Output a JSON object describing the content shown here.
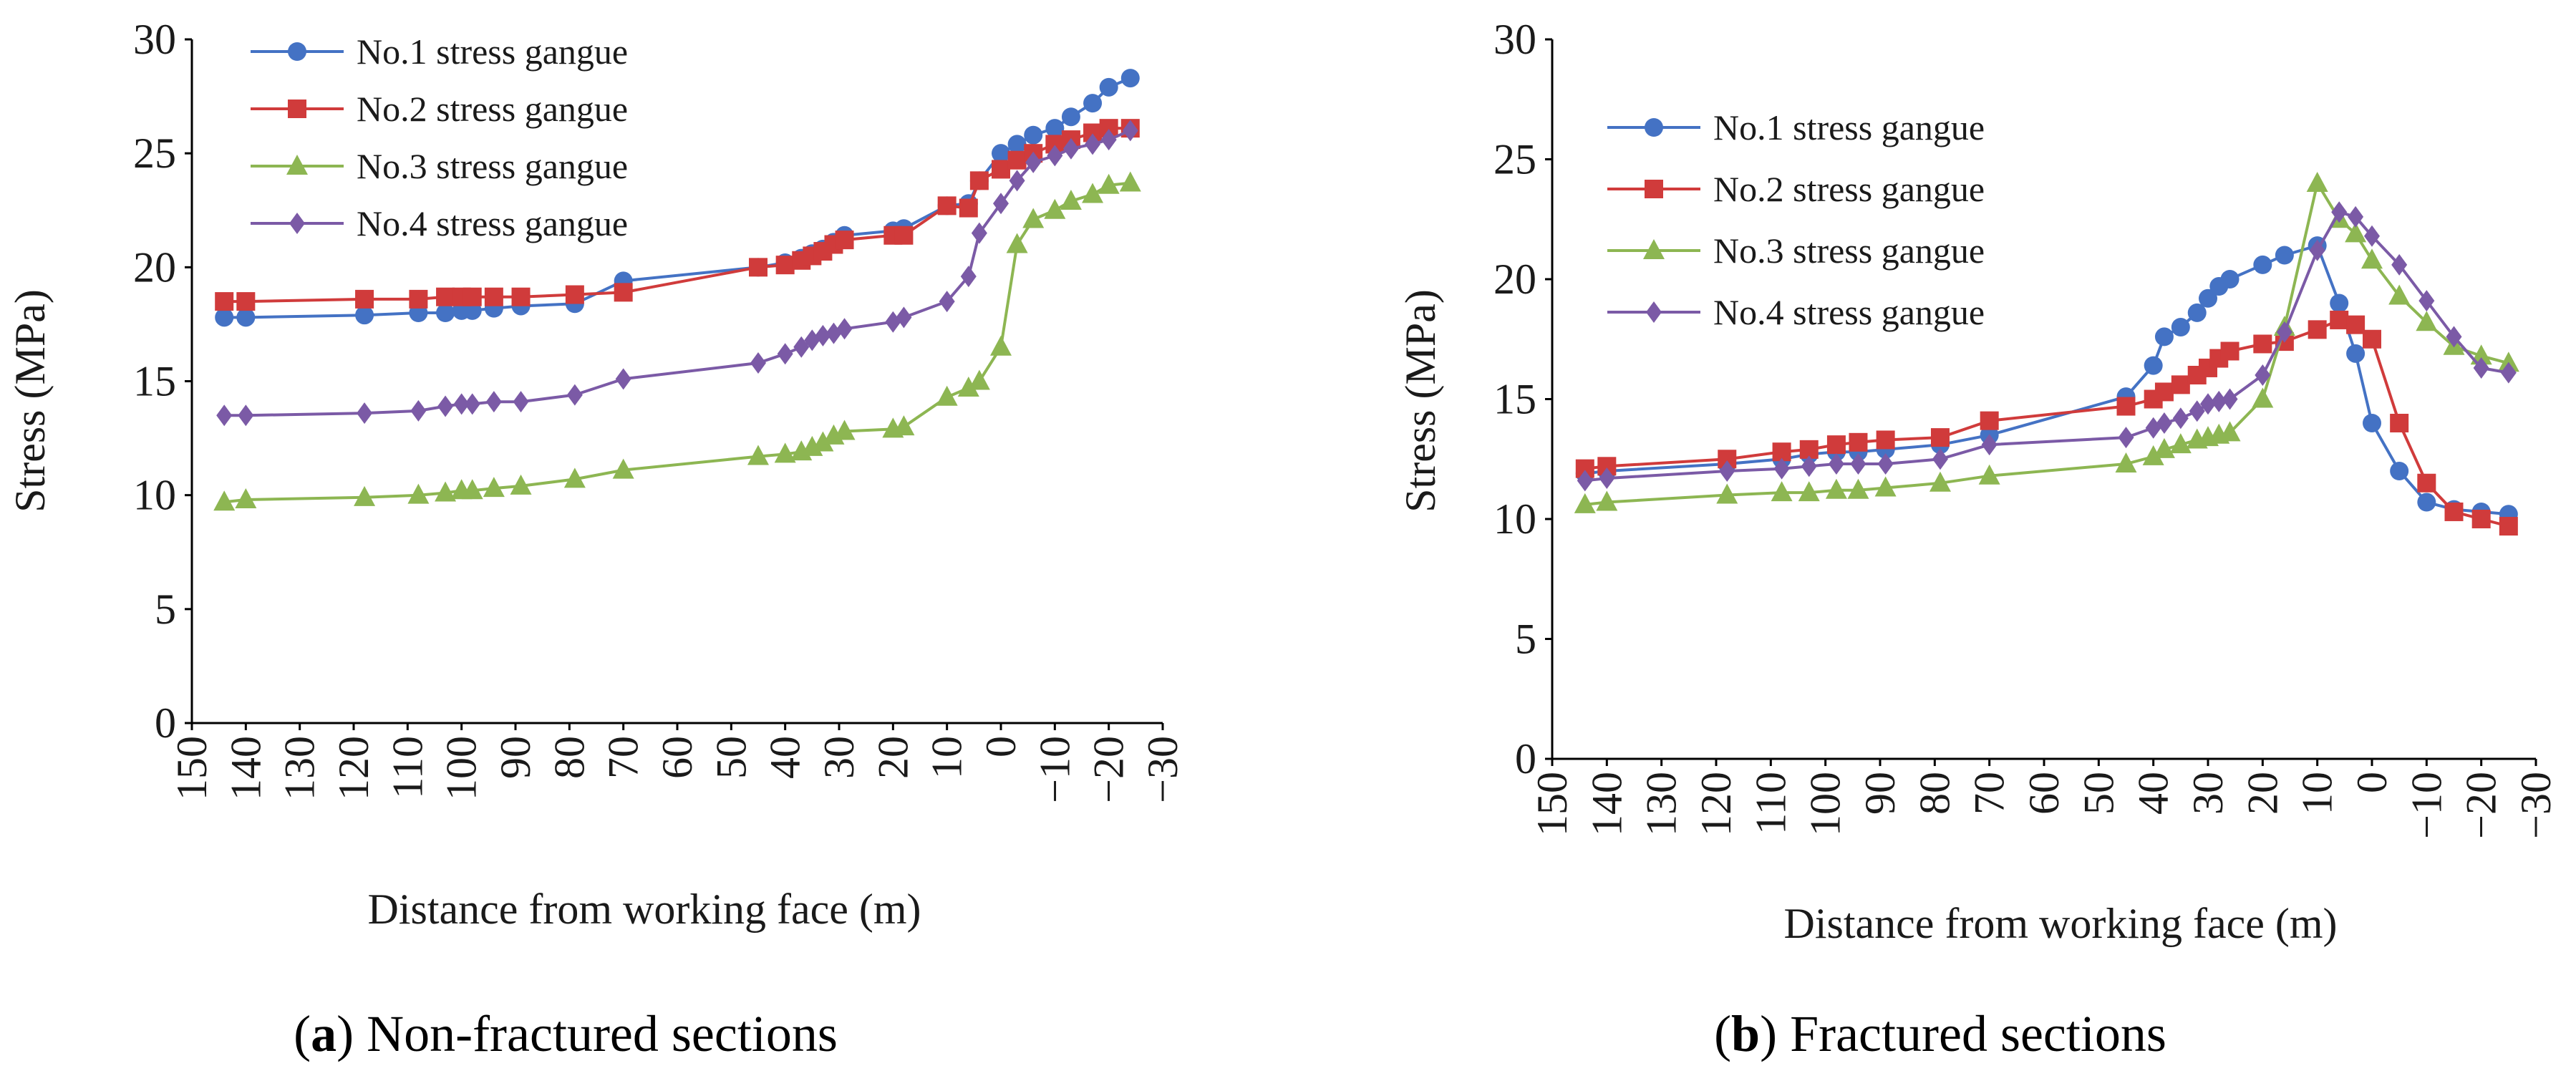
{
  "chart_data": [
    {
      "type": "line",
      "panel_letter": "a",
      "title": "Non-fractured sections",
      "xlabel": "Distance from working face (m)",
      "ylabel": "Stress (MPa)",
      "xlim": [
        150,
        -30
      ],
      "ylim": [
        0,
        30
      ],
      "x_ticks": [
        150,
        140,
        130,
        120,
        110,
        100,
        90,
        80,
        70,
        60,
        50,
        40,
        30,
        20,
        10,
        0,
        -10,
        -20,
        -30
      ],
      "x_tick_labels": [
        "150",
        "140",
        "130",
        "120",
        "110",
        "100",
        "90",
        "80",
        "70",
        "60",
        "50",
        "40",
        "30",
        "20",
        "10",
        "0",
        "−10",
        "−20",
        "−30"
      ],
      "y_ticks": [
        0,
        5,
        10,
        15,
        20,
        25,
        30
      ],
      "y_tick_labels": [
        "0",
        "5",
        "10",
        "15",
        "20",
        "25",
        "30"
      ],
      "legend_position": "top-left",
      "series": [
        {
          "name": "No.1 stress gangue",
          "marker": "circle",
          "color": "#4472C4",
          "x": [
            144,
            140,
            118,
            108,
            103,
            100,
            98,
            94,
            89,
            79,
            70,
            45,
            40,
            37,
            35,
            33,
            31,
            29,
            20,
            18,
            10,
            6,
            4,
            0,
            -3,
            -6,
            -10,
            -13,
            -17,
            -20,
            -24
          ],
          "y": [
            17.8,
            17.8,
            17.9,
            18.0,
            18.0,
            18.1,
            18.1,
            18.2,
            18.3,
            18.4,
            19.4,
            20.0,
            20.2,
            20.4,
            20.6,
            20.8,
            21.1,
            21.4,
            21.6,
            21.7,
            22.7,
            22.8,
            23.8,
            25.0,
            25.4,
            25.8,
            26.1,
            26.6,
            27.2,
            27.9,
            28.3
          ]
        },
        {
          "name": "No.2 stress gangue",
          "marker": "square",
          "color": "#D03B3B",
          "x": [
            144,
            140,
            118,
            108,
            103,
            100,
            98,
            94,
            89,
            79,
            70,
            45,
            40,
            37,
            35,
            33,
            31,
            29,
            20,
            18,
            10,
            6,
            4,
            0,
            -3,
            -6,
            -10,
            -13,
            -17,
            -20,
            -24
          ],
          "y": [
            18.5,
            18.5,
            18.6,
            18.6,
            18.7,
            18.7,
            18.7,
            18.7,
            18.7,
            18.8,
            18.9,
            20.0,
            20.1,
            20.3,
            20.5,
            20.7,
            21.0,
            21.2,
            21.4,
            21.4,
            22.7,
            22.6,
            23.8,
            24.3,
            24.7,
            25.0,
            25.4,
            25.6,
            25.9,
            26.1,
            26.1
          ]
        },
        {
          "name": "No.3 stress gangue",
          "marker": "triangle",
          "color": "#8DB652",
          "x": [
            144,
            140,
            118,
            108,
            103,
            100,
            98,
            94,
            89,
            79,
            70,
            45,
            40,
            37,
            35,
            33,
            31,
            29,
            20,
            18,
            10,
            6,
            4,
            0,
            -3,
            -6,
            -10,
            -13,
            -17,
            -20,
            -24
          ],
          "y": [
            9.7,
            9.8,
            9.9,
            10.0,
            10.1,
            10.2,
            10.2,
            10.3,
            10.4,
            10.7,
            11.1,
            11.7,
            11.8,
            11.9,
            12.1,
            12.3,
            12.6,
            12.8,
            12.9,
            13.0,
            14.3,
            14.7,
            15.0,
            16.5,
            21.0,
            22.1,
            22.5,
            22.9,
            23.2,
            23.6,
            23.7
          ]
        },
        {
          "name": "No.4 stress gangue",
          "marker": "diamond",
          "color": "#7B5AA6",
          "x": [
            144,
            140,
            118,
            108,
            103,
            100,
            98,
            94,
            89,
            79,
            70,
            45,
            40,
            37,
            35,
            33,
            31,
            29,
            20,
            18,
            10,
            6,
            4,
            0,
            -3,
            -6,
            -10,
            -13,
            -17,
            -20,
            -24
          ],
          "y": [
            13.5,
            13.5,
            13.6,
            13.7,
            13.9,
            14.0,
            14.0,
            14.1,
            14.1,
            14.4,
            15.1,
            15.8,
            16.2,
            16.5,
            16.8,
            17.0,
            17.1,
            17.3,
            17.6,
            17.8,
            18.5,
            19.6,
            21.5,
            22.8,
            23.8,
            24.6,
            24.9,
            25.2,
            25.4,
            25.6,
            26.0
          ]
        }
      ]
    },
    {
      "type": "line",
      "panel_letter": "b",
      "title": "Fractured sections",
      "xlabel": "Distance from working face (m)",
      "ylabel": "Stress (MPa)",
      "xlim": [
        150,
        -30
      ],
      "ylim": [
        0,
        30
      ],
      "x_ticks": [
        150,
        140,
        130,
        120,
        110,
        100,
        90,
        80,
        70,
        60,
        50,
        40,
        30,
        20,
        10,
        0,
        -10,
        -20,
        -30
      ],
      "x_tick_labels": [
        "150",
        "140",
        "130",
        "120",
        "110",
        "100",
        "90",
        "80",
        "70",
        "60",
        "50",
        "40",
        "30",
        "20",
        "10",
        "0",
        "−10",
        "−20",
        "−30"
      ],
      "y_ticks": [
        0,
        5,
        10,
        15,
        20,
        25,
        30
      ],
      "y_tick_labels": [
        "0",
        "5",
        "10",
        "15",
        "20",
        "25",
        "30"
      ],
      "legend_position": "top-left",
      "series": [
        {
          "name": "No.1 stress gangue",
          "marker": "circle",
          "color": "#4472C4",
          "x": [
            144,
            140,
            118,
            108,
            103,
            98,
            94,
            89,
            79,
            70,
            45,
            40,
            38,
            35,
            32,
            30,
            28,
            26,
            20,
            16,
            10,
            6,
            3,
            0,
            -5,
            -10,
            -15,
            -20,
            -25
          ],
          "y": [
            11.9,
            12.0,
            12.3,
            12.5,
            12.7,
            12.8,
            12.8,
            12.9,
            13.1,
            13.5,
            15.1,
            16.4,
            17.6,
            18.0,
            18.6,
            19.2,
            19.7,
            20.0,
            20.6,
            21.0,
            21.4,
            19.0,
            16.9,
            14.0,
            12.0,
            10.7,
            10.4,
            10.3,
            10.2
          ]
        },
        {
          "name": "No.2 stress gangue",
          "marker": "square",
          "color": "#D03B3B",
          "x": [
            144,
            140,
            118,
            108,
            103,
            98,
            94,
            89,
            79,
            70,
            45,
            40,
            38,
            35,
            32,
            30,
            28,
            26,
            20,
            16,
            10,
            6,
            3,
            0,
            -5,
            -10,
            -15,
            -20,
            -25
          ],
          "y": [
            12.1,
            12.2,
            12.5,
            12.8,
            12.9,
            13.1,
            13.2,
            13.3,
            13.4,
            14.1,
            14.7,
            15.0,
            15.3,
            15.6,
            16.0,
            16.3,
            16.7,
            17.0,
            17.3,
            17.4,
            17.9,
            18.3,
            18.1,
            17.5,
            14.0,
            11.5,
            10.3,
            10.0,
            9.7
          ]
        },
        {
          "name": "No.3 stress gangue",
          "marker": "triangle",
          "color": "#8DB652",
          "x": [
            144,
            140,
            118,
            108,
            103,
            98,
            94,
            89,
            79,
            70,
            45,
            40,
            38,
            35,
            32,
            30,
            28,
            26,
            20,
            16,
            10,
            6,
            3,
            0,
            -5,
            -10,
            -15,
            -20,
            -25
          ],
          "y": [
            10.6,
            10.7,
            11.0,
            11.1,
            11.1,
            11.2,
            11.2,
            11.3,
            11.5,
            11.8,
            12.3,
            12.6,
            12.9,
            13.1,
            13.3,
            13.4,
            13.5,
            13.6,
            15.0,
            18.0,
            24.0,
            22.5,
            21.9,
            20.8,
            19.3,
            18.2,
            17.2,
            16.8,
            16.5
          ]
        },
        {
          "name": "No.4 stress gangue",
          "marker": "diamond",
          "color": "#7B5AA6",
          "x": [
            144,
            140,
            118,
            108,
            103,
            98,
            94,
            89,
            79,
            70,
            45,
            40,
            38,
            35,
            32,
            30,
            28,
            26,
            20,
            16,
            10,
            6,
            3,
            0,
            -5,
            -10,
            -15,
            -20,
            -25
          ],
          "y": [
            11.6,
            11.7,
            12.0,
            12.1,
            12.2,
            12.3,
            12.3,
            12.3,
            12.5,
            13.1,
            13.4,
            13.8,
            14.0,
            14.2,
            14.5,
            14.8,
            14.9,
            15.0,
            16.0,
            17.8,
            21.2,
            22.8,
            22.6,
            21.8,
            20.6,
            19.1,
            17.6,
            16.3,
            16.1
          ]
        }
      ]
    }
  ]
}
